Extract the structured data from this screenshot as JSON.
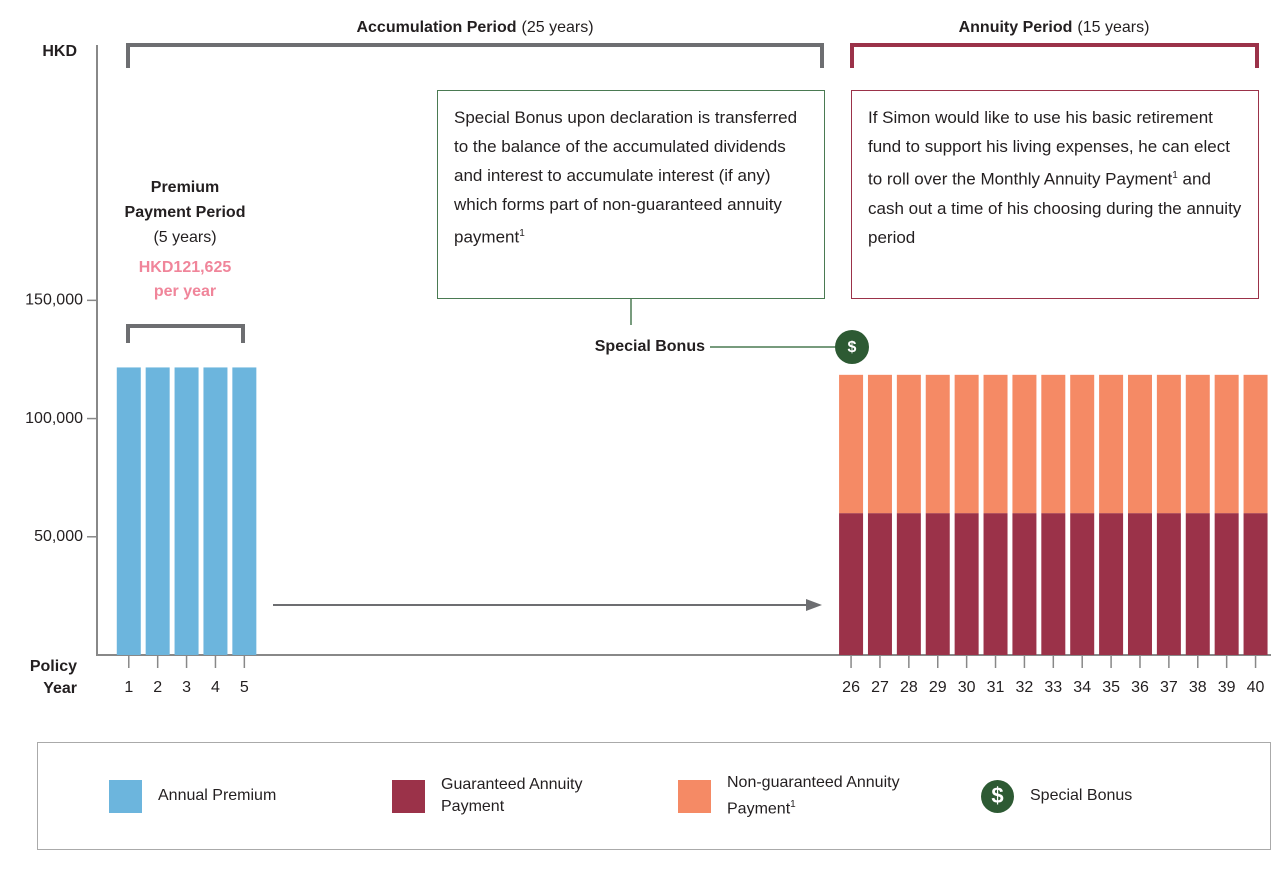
{
  "chart_data": {
    "type": "bar",
    "y_axis_label": "HKD",
    "x_axis_label": [
      "Policy",
      "Year"
    ],
    "x": [
      1,
      2,
      3,
      4,
      5,
      26,
      27,
      28,
      29,
      30,
      31,
      32,
      33,
      34,
      35,
      36,
      37,
      38,
      39,
      40
    ],
    "xlim": [
      -0.1,
      40.5
    ],
    "xticks": [
      1,
      2,
      3,
      4,
      5,
      26,
      27,
      28,
      29,
      30,
      31,
      32,
      33,
      34,
      35,
      36,
      37,
      38,
      39,
      40
    ],
    "ylim": [
      0,
      258000
    ],
    "yticks": [
      {
        "value": 50000,
        "label": "50,000"
      },
      {
        "value": 100000,
        "label": "100,000"
      },
      {
        "value": 150000,
        "label": "150,000"
      }
    ],
    "stacked": true,
    "series": [
      {
        "name": "Annual Premium",
        "color": "#6cb5dd",
        "values": [
          121625,
          121625,
          121625,
          121625,
          121625,
          null,
          null,
          null,
          null,
          null,
          null,
          null,
          null,
          null,
          null,
          null,
          null,
          null,
          null,
          null
        ]
      },
      {
        "name": "Guaranteed Annuity Payment",
        "color": "#9b3249",
        "values": [
          null,
          null,
          null,
          null,
          null,
          60000,
          60000,
          60000,
          60000,
          60000,
          60000,
          60000,
          60000,
          60000,
          60000,
          60000,
          60000,
          60000,
          60000,
          60000
        ]
      },
      {
        "name": "Non-guaranteed Annuity Payment",
        "footnote": "1",
        "color": "#f58a65",
        "values": [
          null,
          null,
          null,
          null,
          null,
          58500,
          58500,
          58500,
          58500,
          58500,
          58500,
          58500,
          58500,
          58500,
          58500,
          58500,
          58500,
          58500,
          58500,
          58500
        ]
      }
    ],
    "annotations": {
      "accumulation": {
        "title": "Accumulation Period",
        "note": "(25 years)"
      },
      "annuity": {
        "title": "Annuity Period",
        "note": "(15 years)"
      },
      "premium_period": {
        "title": [
          "Premium",
          "Payment Period"
        ],
        "note": "(5 years)",
        "amount": "HKD121,625",
        "unit": "per year"
      },
      "bonus_box": {
        "text": "Special Bonus upon declaration is transferred to the balance of the accumulated dividends and interest to accumulate interest (if any) which forms part of non-guaranteed annuity payment",
        "footnote": "1"
      },
      "annuity_box": {
        "text_before": "If Simon would like to use his basic retirement fund to support his living expenses, he can elect to roll over the Monthly Annuity Payment",
        "footnote": "1",
        "text_after": " and cash out a time of his choosing during the annuity period"
      },
      "special_bonus": {
        "label": "Special Bonus",
        "icon": "$"
      }
    },
    "legend_extra": {
      "name": "Special Bonus",
      "icon": "$"
    }
  }
}
